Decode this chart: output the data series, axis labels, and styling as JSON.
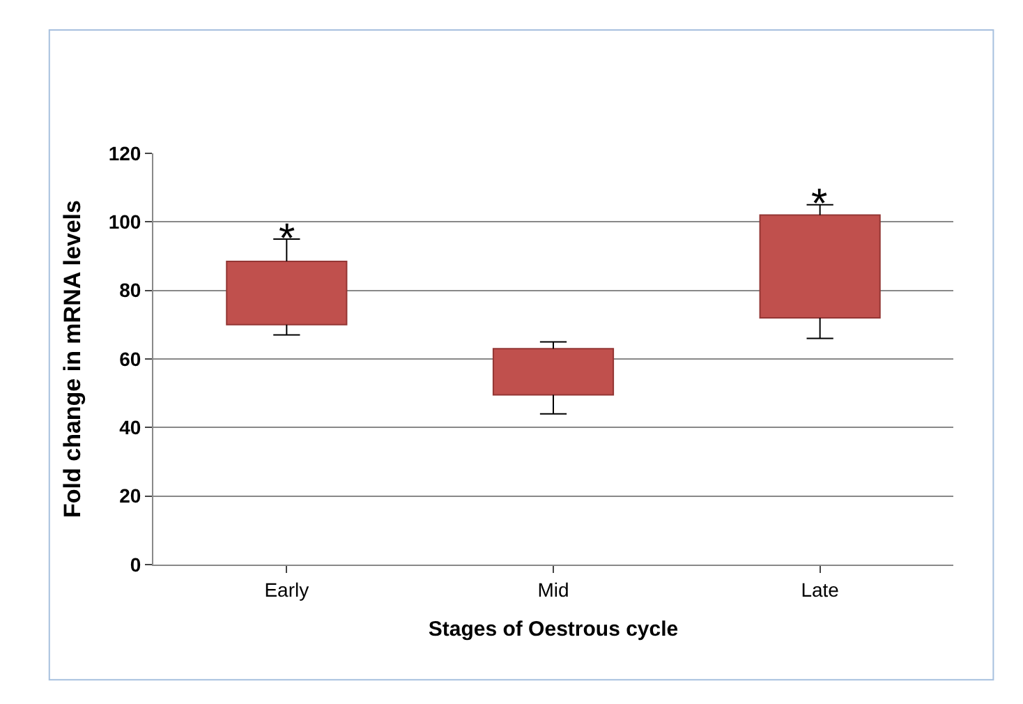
{
  "chart_data": {
    "type": "bar",
    "xlabel": "Stages of Oestrous cycle",
    "ylabel": "Fold change in mRNA levels",
    "categories": [
      "Early",
      "Mid",
      "Late"
    ],
    "base": [
      70,
      49.5,
      72
    ],
    "values": [
      18.5,
      13.5,
      30
    ],
    "errors": [
      [
        67,
        95
      ],
      [
        44,
        65
      ],
      [
        66,
        105
      ]
    ],
    "color": "#c0504d",
    "ylim": [
      0,
      120
    ],
    "yticks": [
      0,
      20,
      40,
      60,
      80,
      100,
      120
    ],
    "grid": "y",
    "annotations": [
      {
        "text": "*",
        "x": "Early",
        "y": 95
      },
      {
        "text": "*",
        "x": "Late",
        "y": 105
      }
    ]
  }
}
